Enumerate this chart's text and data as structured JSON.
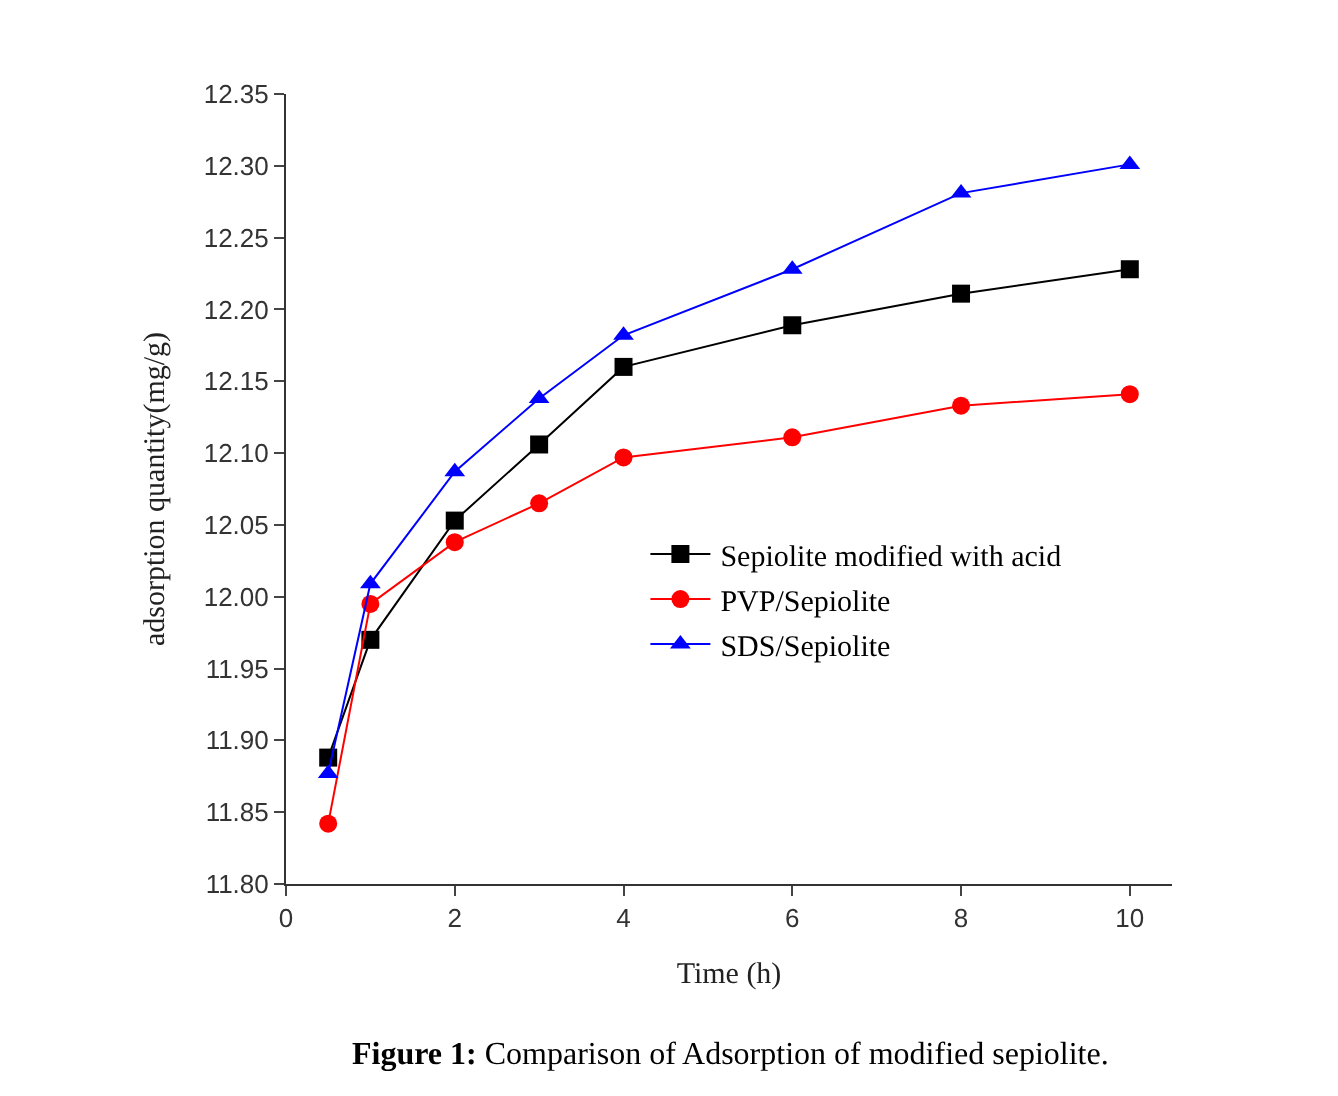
{
  "chart_data": {
    "type": "line",
    "title": "Figure 1: Comparison of Adsorption of modified sepiolite.",
    "xlabel": "Time (h)",
    "ylabel": "adsorption quantity(mg/g)",
    "x": [
      0.5,
      1,
      2,
      3,
      4,
      6,
      8,
      10
    ],
    "series": [
      {
        "name": "Sepiolite modified with acid",
        "color": "#000000",
        "marker": "square",
        "values": [
          11.888,
          11.97,
          12.053,
          12.106,
          12.16,
          12.189,
          12.211,
          12.228
        ]
      },
      {
        "name": "PVP/Sepiolite",
        "color": "#ff0000",
        "marker": "circle",
        "values": [
          11.842,
          11.995,
          12.038,
          12.065,
          12.097,
          12.111,
          12.133,
          12.141
        ]
      },
      {
        "name": "SDS/Sepiolite",
        "color": "#0000ff",
        "marker": "triangle",
        "values": [
          11.877,
          12.009,
          12.087,
          12.138,
          12.182,
          12.228,
          12.281,
          12.301
        ]
      }
    ],
    "xlim": [
      0,
      10.5
    ],
    "xticks": [
      0,
      2,
      4,
      6,
      8,
      10
    ],
    "ylim": [
      11.8,
      12.35
    ],
    "yticks": [
      {
        "value": 11.8,
        "label": "11.80"
      },
      {
        "value": 11.85,
        "label": "11.85"
      },
      {
        "value": 11.9,
        "label": "11.90"
      },
      {
        "value": 11.95,
        "label": "11.95"
      },
      {
        "value": 12.0,
        "label": "12.00"
      },
      {
        "value": 12.05,
        "label": "12.05"
      },
      {
        "value": 12.1,
        "label": "12.10"
      },
      {
        "value": 12.15,
        "label": "12.15"
      },
      {
        "value": 12.2,
        "label": "12.20"
      },
      {
        "value": 12.25,
        "label": "12.25"
      },
      {
        "value": 12.3,
        "label": "12.30"
      },
      {
        "value": 12.35,
        "label": "12.35"
      }
    ],
    "legend": "right",
    "line_style": "solid"
  }
}
